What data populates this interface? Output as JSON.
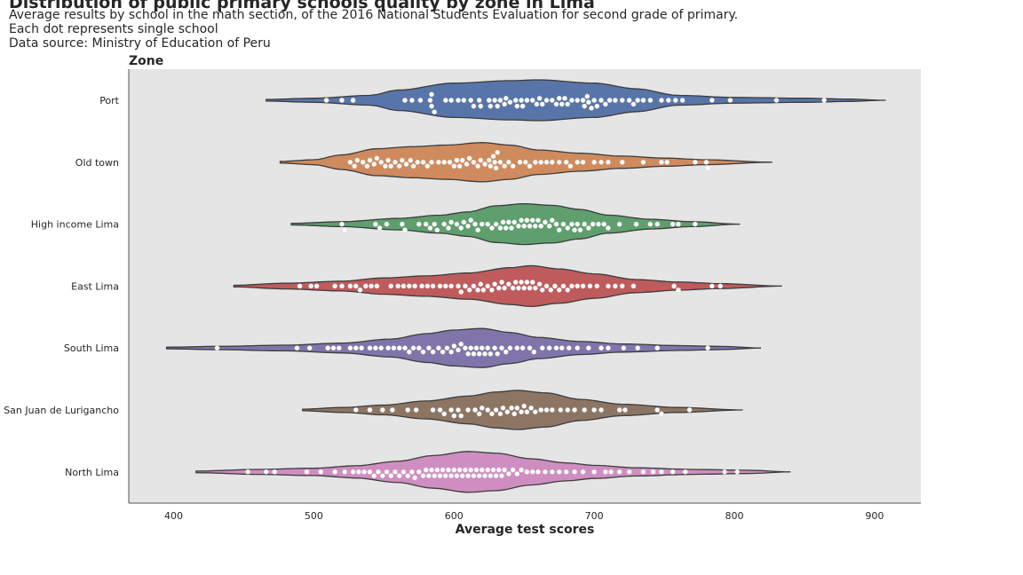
{
  "header": {
    "title": "Distribution of public primary schools quality by zone in Lima",
    "subtitle_lines": [
      "Average results by school in the math section, of the 2016 National Students Evaluation for second grade of primary.",
      "Each dot represents single school",
      "Data source: Ministry of Education of Peru"
    ]
  },
  "chart_data": {
    "type": "violin",
    "title": "Distribution of public primary schools quality by zone in Lima",
    "xlabel": "Average test scores",
    "ylabel": "Zone",
    "xlim": [
      368,
      933
    ],
    "xticks": [
      400,
      500,
      600,
      700,
      800,
      900
    ],
    "grid": false,
    "background_color": "#e5e5e5",
    "outline_color": "#3c3c3c",
    "point_color": "#ffffff",
    "categories": [
      "Port",
      "Old town",
      "High income Lima",
      "East Lima",
      "South Lima",
      "San Juan de Lurigancho",
      "North Lima"
    ],
    "series": [
      {
        "name": "Port",
        "color": "#5875a9",
        "range": [
          466,
          908
        ],
        "density_profile": [
          [
            466,
            0.02
          ],
          [
            500,
            0.05
          ],
          [
            540,
            0.12
          ],
          [
            560,
            0.25
          ],
          [
            600,
            0.42
          ],
          [
            640,
            0.48
          ],
          [
            660,
            0.5
          ],
          [
            700,
            0.42
          ],
          [
            730,
            0.28
          ],
          [
            760,
            0.12
          ],
          [
            800,
            0.07
          ],
          [
            850,
            0.05
          ],
          [
            880,
            0.03
          ],
          [
            908,
            0.0
          ]
        ],
        "points": [
          509,
          520,
          528,
          565,
          570,
          576,
          583,
          584,
          584,
          586,
          594,
          598,
          603,
          607,
          612,
          614,
          618,
          619,
          625,
          626,
          629,
          631,
          633,
          636,
          637,
          640,
          644,
          645,
          648,
          649,
          652,
          656,
          659,
          661,
          663,
          666,
          670,
          673,
          675,
          677,
          679,
          681,
          684,
          688,
          692,
          693,
          695,
          696,
          698,
          700,
          702,
          705,
          708,
          711,
          715,
          720,
          725,
          728,
          731,
          735,
          740,
          748,
          753,
          758,
          763,
          784,
          797,
          830,
          864
        ]
      },
      {
        "name": "Old town",
        "color": "#cf8b5d",
        "range": [
          476,
          827
        ],
        "density_profile": [
          [
            476,
            0.02
          ],
          [
            500,
            0.06
          ],
          [
            520,
            0.18
          ],
          [
            545,
            0.33
          ],
          [
            570,
            0.38
          ],
          [
            595,
            0.42
          ],
          [
            620,
            0.48
          ],
          [
            640,
            0.42
          ],
          [
            660,
            0.3
          ],
          [
            690,
            0.22
          ],
          [
            720,
            0.15
          ],
          [
            750,
            0.1
          ],
          [
            780,
            0.06
          ],
          [
            827,
            0.0
          ]
        ],
        "points": [
          526,
          529,
          531,
          535,
          538,
          540,
          543,
          545,
          548,
          551,
          553,
          555,
          558,
          561,
          563,
          566,
          569,
          571,
          574,
          578,
          581,
          584,
          589,
          593,
          597,
          600,
          602,
          604,
          606,
          609,
          611,
          614,
          617,
          619,
          622,
          625,
          626,
          628,
          629,
          630,
          631,
          633,
          636,
          639,
          642,
          647,
          651,
          654,
          658,
          662,
          666,
          670,
          675,
          680,
          683,
          688,
          692,
          700,
          705,
          710,
          720,
          735,
          748,
          752,
          772,
          780,
          781
        ]
      },
      {
        "name": "High income Lima",
        "color": "#5e9f6d",
        "range": [
          484,
          804
        ],
        "density_profile": [
          [
            484,
            0.02
          ],
          [
            520,
            0.06
          ],
          [
            560,
            0.14
          ],
          [
            590,
            0.22
          ],
          [
            610,
            0.3
          ],
          [
            630,
            0.45
          ],
          [
            650,
            0.5
          ],
          [
            670,
            0.46
          ],
          [
            690,
            0.36
          ],
          [
            710,
            0.22
          ],
          [
            740,
            0.12
          ],
          [
            770,
            0.06
          ],
          [
            804,
            0.0
          ]
        ],
        "points": [
          520,
          522,
          544,
          547,
          552,
          563,
          565,
          575,
          580,
          583,
          586,
          588,
          593,
          596,
          598,
          602,
          605,
          607,
          610,
          612,
          615,
          617,
          620,
          624,
          627,
          630,
          633,
          635,
          637,
          639,
          641,
          643,
          646,
          648,
          650,
          652,
          654,
          656,
          658,
          660,
          662,
          665,
          668,
          670,
          673,
          675,
          678,
          681,
          684,
          686,
          688,
          690,
          693,
          696,
          699,
          703,
          707,
          710,
          718,
          730,
          740,
          745,
          756,
          760,
          772
        ]
      },
      {
        "name": "East Lima",
        "color": "#bf5b5d",
        "range": [
          443,
          834
        ],
        "density_profile": [
          [
            443,
            0.02
          ],
          [
            480,
            0.07
          ],
          [
            520,
            0.12
          ],
          [
            550,
            0.2
          ],
          [
            580,
            0.25
          ],
          [
            610,
            0.32
          ],
          [
            640,
            0.45
          ],
          [
            655,
            0.5
          ],
          [
            675,
            0.42
          ],
          [
            700,
            0.3
          ],
          [
            730,
            0.16
          ],
          [
            760,
            0.1
          ],
          [
            790,
            0.06
          ],
          [
            834,
            0.0
          ]
        ],
        "points": [
          490,
          498,
          502,
          515,
          520,
          526,
          530,
          533,
          537,
          541,
          545,
          555,
          560,
          564,
          568,
          572,
          577,
          581,
          585,
          590,
          594,
          598,
          603,
          605,
          608,
          611,
          614,
          617,
          619,
          621,
          624,
          627,
          629,
          632,
          634,
          636,
          639,
          642,
          644,
          646,
          648,
          650,
          652,
          654,
          656,
          658,
          661,
          663,
          666,
          669,
          672,
          675,
          678,
          681,
          684,
          688,
          692,
          697,
          702,
          710,
          715,
          720,
          728,
          757,
          760,
          784,
          790
        ]
      },
      {
        "name": "South Lima",
        "color": "#8075ab",
        "range": [
          395,
          819
        ],
        "density_profile": [
          [
            395,
            0.02
          ],
          [
            430,
            0.04
          ],
          [
            480,
            0.07
          ],
          [
            520,
            0.12
          ],
          [
            555,
            0.22
          ],
          [
            580,
            0.35
          ],
          [
            600,
            0.44
          ],
          [
            620,
            0.48
          ],
          [
            640,
            0.38
          ],
          [
            660,
            0.26
          ],
          [
            690,
            0.16
          ],
          [
            720,
            0.1
          ],
          [
            760,
            0.06
          ],
          [
            790,
            0.04
          ],
          [
            819,
            0.0
          ]
        ],
        "points": [
          431,
          488,
          497,
          510,
          514,
          518,
          526,
          530,
          534,
          540,
          544,
          548,
          553,
          557,
          561,
          565,
          568,
          571,
          575,
          578,
          582,
          585,
          589,
          592,
          595,
          598,
          600,
          603,
          605,
          608,
          610,
          612,
          614,
          616,
          618,
          620,
          622,
          624,
          626,
          629,
          631,
          634,
          637,
          640,
          645,
          649,
          654,
          657,
          663,
          668,
          673,
          677,
          682,
          688,
          696,
          705,
          710,
          721,
          731,
          745,
          781
        ]
      },
      {
        "name": "San Juan de Lurigancho",
        "color": "#8d7564",
        "range": [
          492,
          806
        ],
        "density_profile": [
          [
            492,
            0.02
          ],
          [
            520,
            0.06
          ],
          [
            550,
            0.12
          ],
          [
            580,
            0.22
          ],
          [
            610,
            0.34
          ],
          [
            630,
            0.44
          ],
          [
            645,
            0.48
          ],
          [
            665,
            0.42
          ],
          [
            690,
            0.26
          ],
          [
            720,
            0.14
          ],
          [
            760,
            0.06
          ],
          [
            806,
            0.0
          ]
        ],
        "points": [
          530,
          540,
          549,
          556,
          567,
          573,
          585,
          590,
          593,
          598,
          600,
          603,
          605,
          610,
          615,
          618,
          620,
          624,
          627,
          630,
          633,
          635,
          638,
          641,
          643,
          645,
          648,
          650,
          652,
          655,
          658,
          662,
          666,
          670,
          676,
          681,
          686,
          693,
          700,
          705,
          718,
          722,
          745,
          748,
          768
        ]
      },
      {
        "name": "North Lima",
        "color": "#cf8ec1",
        "range": [
          416,
          840
        ],
        "density_profile": [
          [
            416,
            0.02
          ],
          [
            460,
            0.06
          ],
          [
            500,
            0.09
          ],
          [
            530,
            0.15
          ],
          [
            560,
            0.26
          ],
          [
            585,
            0.4
          ],
          [
            610,
            0.5
          ],
          [
            630,
            0.46
          ],
          [
            655,
            0.32
          ],
          [
            680,
            0.22
          ],
          [
            700,
            0.16
          ],
          [
            730,
            0.1
          ],
          [
            770,
            0.06
          ],
          [
            810,
            0.04
          ],
          [
            840,
            0.0
          ]
        ],
        "points": [
          453,
          466,
          472,
          495,
          505,
          515,
          522,
          528,
          532,
          536,
          540,
          543,
          546,
          549,
          552,
          555,
          558,
          561,
          564,
          567,
          570,
          572,
          575,
          578,
          580,
          582,
          584,
          586,
          588,
          590,
          592,
          594,
          596,
          598,
          600,
          602,
          604,
          606,
          608,
          610,
          612,
          614,
          616,
          618,
          620,
          622,
          624,
          626,
          628,
          630,
          632,
          634,
          636,
          639,
          642,
          645,
          648,
          652,
          656,
          660,
          665,
          670,
          675,
          680,
          686,
          692,
          700,
          708,
          712,
          718,
          725,
          735,
          742,
          748,
          756,
          765,
          793,
          802
        ]
      }
    ]
  }
}
